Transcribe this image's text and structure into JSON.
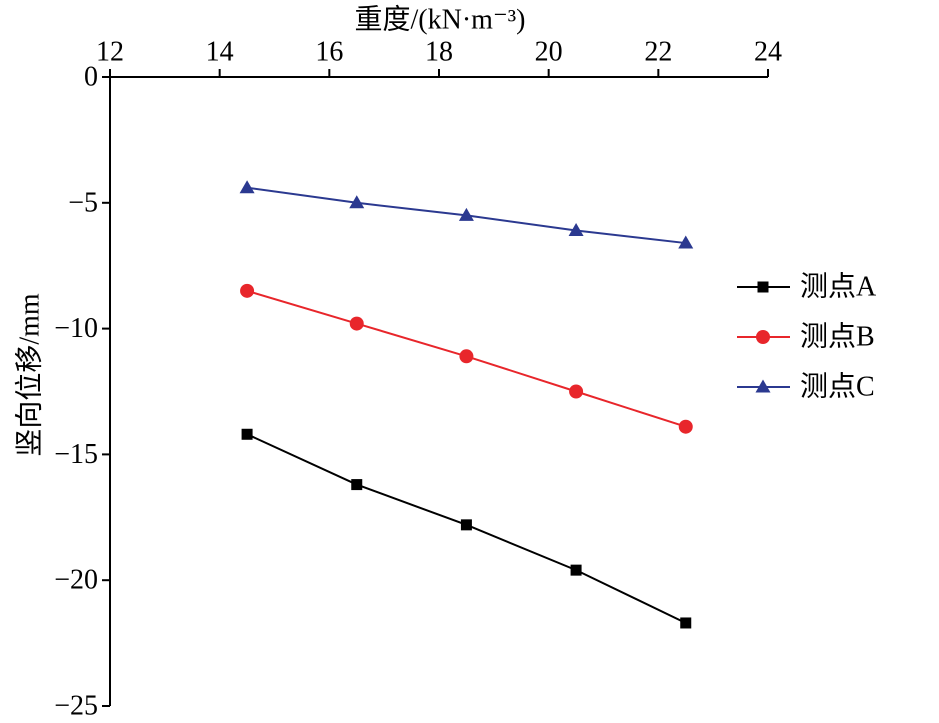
{
  "chart_data": {
    "type": "line",
    "xlabel": "重度/(kN·m⁻³)",
    "ylabel": "竖向位移/mm",
    "xlim": [
      12,
      24
    ],
    "ylim": [
      -25,
      0
    ],
    "x_axis_position": "top",
    "x_ticks": [
      12,
      14,
      16,
      18,
      20,
      22,
      24
    ],
    "x_tick_labels": [
      "12",
      "14",
      "16",
      "18",
      "20",
      "22",
      "24"
    ],
    "y_ticks": [
      0,
      -5,
      -10,
      -15,
      -20,
      -25
    ],
    "y_tick_labels": [
      "0",
      "−5",
      "−10",
      "−15",
      "−20",
      "−25"
    ],
    "grid": false,
    "legend": {
      "position": "right"
    },
    "x": [
      14.5,
      16.5,
      18.5,
      20.5,
      22.5
    ],
    "series": [
      {
        "name": "测点A",
        "values": [
          -14.2,
          -16.2,
          -17.8,
          -19.6,
          -21.7
        ],
        "color": "#000000",
        "marker": "square"
      },
      {
        "name": "测点B",
        "values": [
          -8.5,
          -9.8,
          -11.1,
          -12.5,
          -13.9
        ],
        "color": "#e8262b",
        "marker": "circle"
      },
      {
        "name": "测点C",
        "values": [
          -4.4,
          -5.0,
          -5.5,
          -6.1,
          -6.6
        ],
        "color": "#2b3990",
        "marker": "triangle"
      }
    ]
  }
}
